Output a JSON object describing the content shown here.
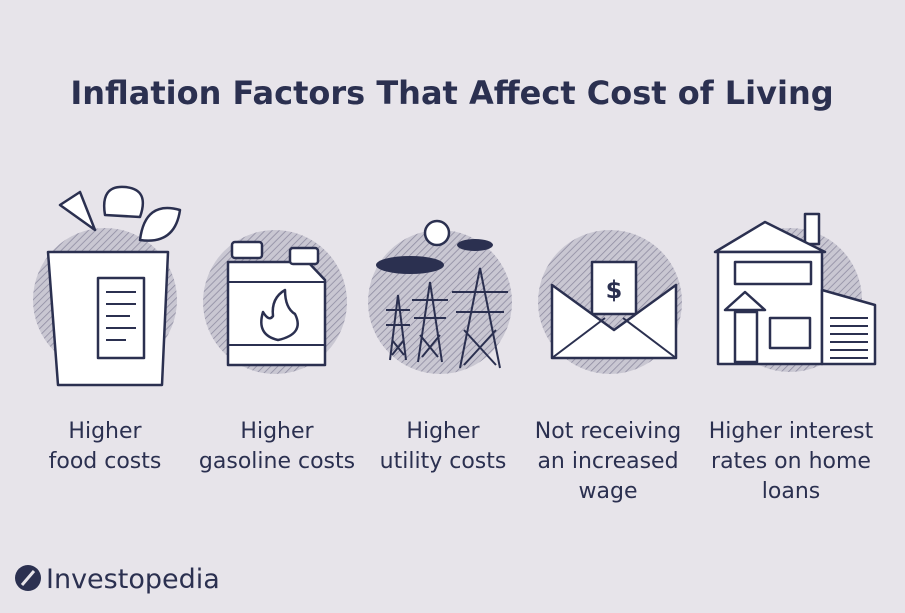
{
  "title": "Inflation Factors That Affect Cost of Living",
  "items": [
    {
      "lines": [
        "Higher",
        "food costs"
      ]
    },
    {
      "lines": [
        "Higher",
        "gasoline costs"
      ]
    },
    {
      "lines": [
        "Higher",
        "utility costs"
      ]
    },
    {
      "lines": [
        "Not receiving",
        "an increased",
        "wage"
      ]
    },
    {
      "lines": [
        "Higher interest",
        "rates on home",
        "loans"
      ]
    }
  ],
  "brand": "Investopedia"
}
